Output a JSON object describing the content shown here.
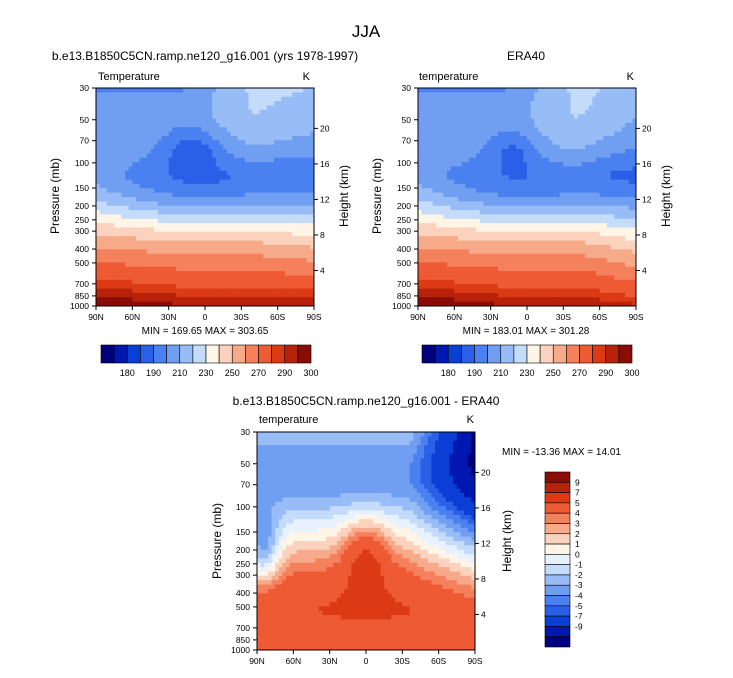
{
  "figure": {
    "title": "JJA"
  },
  "colors": {
    "temp_palette": [
      "#00007f",
      "#0018b0",
      "#0a3fd6",
      "#2a5fe8",
      "#4a80f0",
      "#709ff2",
      "#98bdf6",
      "#c4dcfa",
      "#fff5e6",
      "#fbd2bd",
      "#f7aa8a",
      "#f4805c",
      "#ee5a34",
      "#db3a15",
      "#b8220a",
      "#8a0c06"
    ],
    "diff_palette": [
      "#00007f",
      "#0018b0",
      "#0a3fd6",
      "#2a5fe8",
      "#4a80f0",
      "#709ff2",
      "#98bdf6",
      "#c4dcfa",
      "#e8f2ff",
      "#fff5e6",
      "#fbd2bd",
      "#f7aa8a",
      "#f4805c",
      "#ee5a34",
      "#db3a15",
      "#b8220a",
      "#8a0c06"
    ]
  },
  "chart_data": [
    {
      "type": "heatmap",
      "title": "b.e13.B1850C5CN.ramp.ne120_g16.001 (yrs 1978-1997)",
      "left_label": "Temperature",
      "right_label": "K",
      "xlabel": "",
      "ylabel": "Pressure (mb)",
      "y2label": "Height (km)",
      "x_ticks": [
        "90N",
        "60N",
        "30N",
        "0",
        "30S",
        "60S",
        "90S"
      ],
      "p_ticks": [
        "30",
        "50",
        "70",
        "100",
        "150",
        "200",
        "250",
        "300",
        "400",
        "500",
        "700",
        "850",
        "1000"
      ],
      "p_values": [
        30,
        50,
        70,
        100,
        150,
        200,
        250,
        300,
        400,
        500,
        700,
        850,
        1000
      ],
      "h_ticks": [
        "20",
        "16",
        "12",
        "8",
        "4"
      ],
      "h_values": [
        20,
        16,
        12,
        8,
        4
      ],
      "stats": "MIN = 169.65   MAX = 303.65",
      "min": 169.65,
      "max": 303.65,
      "colorbar_labels": [
        "180",
        "190",
        "210",
        "230",
        "250",
        "270",
        "290",
        "300"
      ],
      "field": "model"
    },
    {
      "type": "heatmap",
      "title": "ERA40",
      "left_label": "temperature",
      "right_label": "K",
      "xlabel": "",
      "ylabel": "Pressure (mb)",
      "y2label": "Height (km)",
      "x_ticks": [
        "90N",
        "60N",
        "30N",
        "0",
        "30S",
        "60S",
        "90S"
      ],
      "p_ticks": [
        "30",
        "50",
        "70",
        "100",
        "150",
        "200",
        "250",
        "300",
        "400",
        "500",
        "700",
        "850",
        "1000"
      ],
      "p_values": [
        30,
        50,
        70,
        100,
        150,
        200,
        250,
        300,
        400,
        500,
        700,
        850,
        1000
      ],
      "h_ticks": [
        "20",
        "16",
        "12",
        "8",
        "4"
      ],
      "h_values": [
        20,
        16,
        12,
        8,
        4
      ],
      "stats": "MIN = 183.01   MAX = 301.28",
      "min": 183.01,
      "max": 301.28,
      "colorbar_labels": [
        "180",
        "190",
        "210",
        "230",
        "250",
        "270",
        "290",
        "300"
      ],
      "field": "obs"
    },
    {
      "type": "heatmap",
      "title": "b.e13.B1850C5CN.ramp.ne120_g16.001 - ERA40",
      "left_label": "temperature",
      "right_label": "K",
      "xlabel": "",
      "ylabel": "Pressure (mb)",
      "y2label": "Height (km)",
      "x_ticks": [
        "90N",
        "60N",
        "30N",
        "0",
        "30S",
        "60S",
        "90S"
      ],
      "p_ticks": [
        "30",
        "50",
        "70",
        "100",
        "150",
        "200",
        "250",
        "300",
        "400",
        "500",
        "700",
        "850",
        "1000"
      ],
      "p_values": [
        30,
        50,
        70,
        100,
        150,
        200,
        250,
        300,
        400,
        500,
        700,
        850,
        1000
      ],
      "h_ticks": [
        "20",
        "16",
        "12",
        "8",
        "4"
      ],
      "h_values": [
        20,
        16,
        12,
        8,
        4
      ],
      "stats": "MIN = -13.36  MAX =  14.01",
      "min": -13.36,
      "max": 14.01,
      "colorbar_labels": [
        "9",
        "7",
        "5",
        "4",
        "3",
        "2",
        "1",
        "0",
        "-1",
        "-2",
        "-3",
        "-4",
        "-5",
        "-7",
        "-9"
      ],
      "field": "diff"
    }
  ]
}
